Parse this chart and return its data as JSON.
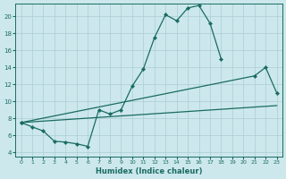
{
  "xlabel": "Humidex (Indice chaleur)",
  "bg_color": "#cce8ec",
  "grid_color": "#aacdd4",
  "line_color": "#1a6b60",
  "xlim": [
    -0.5,
    23.5
  ],
  "ylim": [
    3.5,
    21.5
  ],
  "xticks": [
    0,
    1,
    2,
    3,
    4,
    5,
    6,
    7,
    8,
    9,
    10,
    11,
    12,
    13,
    14,
    15,
    16,
    17,
    18,
    19,
    20,
    21,
    22,
    23
  ],
  "yticks": [
    4,
    6,
    8,
    10,
    12,
    14,
    16,
    18,
    20
  ],
  "line1_x": [
    0,
    1,
    2,
    3,
    4,
    5,
    6,
    7,
    8,
    9,
    10,
    11,
    12,
    13,
    14,
    15,
    16,
    17,
    18
  ],
  "line1_y": [
    7.5,
    7.0,
    6.5,
    5.3,
    5.2,
    5.0,
    4.7,
    9.0,
    8.5,
    9.0,
    11.8,
    13.8,
    17.5,
    20.2,
    19.5,
    21.0,
    21.3,
    19.2,
    15.0
  ],
  "line2_x": [
    0,
    21,
    22,
    23
  ],
  "line2_y": [
    7.5,
    13.0,
    14.0,
    11.0
  ],
  "line3_x": [
    0,
    23
  ],
  "line3_y": [
    7.5,
    9.5
  ]
}
